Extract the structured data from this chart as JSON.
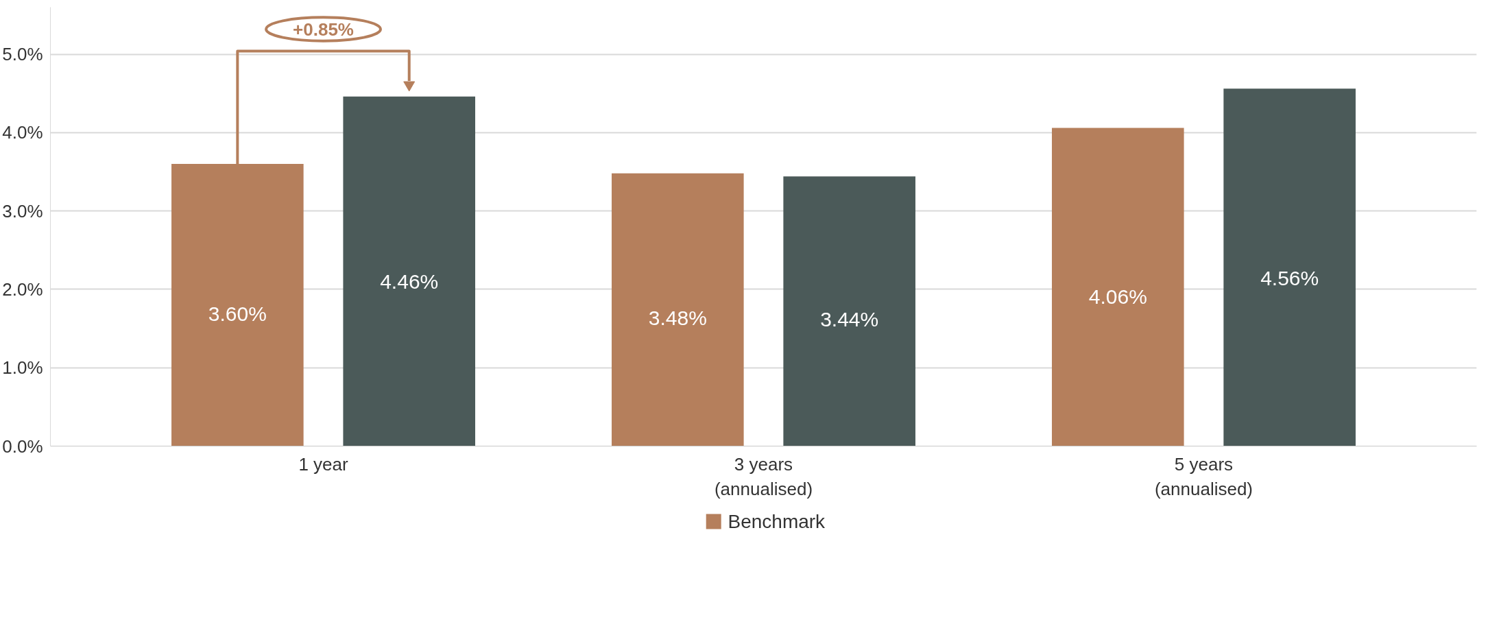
{
  "chart_data": {
    "type": "bar",
    "categories": [
      "1 year",
      "3 years\n(annualised)",
      "5 years\n(annualised)"
    ],
    "series": [
      {
        "name": "Benchmark",
        "color": "#b57f5c",
        "values": [
          3.6,
          3.48,
          4.06
        ],
        "value_labels": [
          "3.60%",
          "3.48%",
          "4.06%"
        ]
      },
      {
        "color": "#4b5a59",
        "values": [
          4.46,
          3.44,
          4.56
        ],
        "value_labels": [
          "4.46%",
          "3.44%",
          "4.56%"
        ]
      }
    ],
    "ylim": [
      0,
      5.6
    ],
    "yticks": [
      {
        "value": 0,
        "label": "0.0%"
      },
      {
        "value": 1,
        "label": "1.0%"
      },
      {
        "value": 2,
        "label": "2.0%"
      },
      {
        "value": 3,
        "label": "3.0%"
      },
      {
        "value": 4,
        "label": "4.0%"
      },
      {
        "value": 5,
        "label": "5.0%"
      }
    ],
    "annotations": [
      "+0.85%"
    ],
    "grid": "y",
    "legend": "bottom"
  }
}
